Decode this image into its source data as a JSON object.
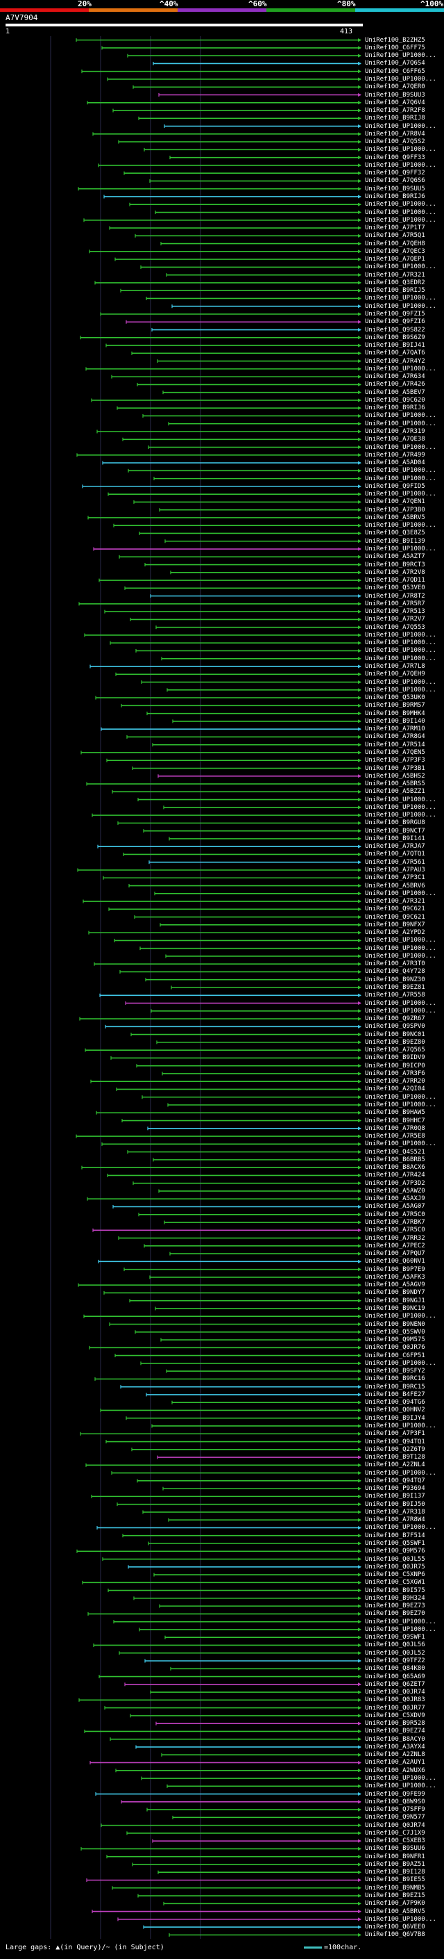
{
  "scale": {
    "labels": [
      "20%",
      "^40%",
      "^60%",
      "^80%",
      "^100%"
    ],
    "colors": [
      "#e01010",
      "#e07010",
      "#9030c0",
      "#20a020",
      "#20c0d0"
    ]
  },
  "query": {
    "id": "A7V7904",
    "start": "1",
    "end": "413"
  },
  "footer": {
    "text": "Large gaps: ▲(in Query)/~ (in Subject)",
    "legend": "=100char."
  },
  "colors": {
    "green": "#30c030",
    "cyan": "#40c8e8",
    "magenta": "#c040c0",
    "white": "#ffffff",
    "grid": "#2a2a4a"
  },
  "hits": [
    "UniRef100_B2ZHZ5",
    "UniRef100_C6FF75",
    "UniRef100_UP1000...",
    "UniRef100_A7Q6S4",
    "UniRef100_C6FF65",
    "UniRef100_UP1000...",
    "UniRef100_A7QER0",
    "UniRef100_B9SUU3",
    "UniRef100_A7Q6V4",
    "UniRef100_A7R2F8",
    "UniRef100_B9RIJ8",
    "UniRef100_UP1000...",
    "UniRef100_A7R8V4",
    "UniRef100_A7Q5S2",
    "UniRef100_UP1000...",
    "UniRef100_Q9FF33",
    "UniRef100_UP1000...",
    "UniRef100_Q9FF32",
    "UniRef100_A7Q6S6",
    "UniRef100_B9SUU5",
    "UniRef100_B9RIJ6",
    "UniRef100_UP1000...",
    "UniRef100_UP1000...",
    "UniRef100_UP1000...",
    "UniRef100_A7P1T7",
    "UniRef100_A7R5Q1",
    "UniRef100_A7QEH8",
    "UniRef100_A7QEC3",
    "UniRef100_A7QEP1",
    "UniRef100_UP1000...",
    "UniRef100_A7R321",
    "UniRef100_Q3EDR2",
    "UniRef100_B9RIJ5",
    "UniRef100_UP1000...",
    "UniRef100_UP1000...",
    "UniRef100_Q9FZI5",
    "UniRef100_Q9FZI6",
    "UniRef100_Q9S822",
    "UniRef100_B9S6Z9",
    "UniRef100_B9IJ41",
    "UniRef100_A7QAT6",
    "UniRef100_A7R4Y2",
    "UniRef100_UP1000...",
    "UniRef100_A7R634",
    "UniRef100_A7R426",
    "UniRef100_A5BEV7",
    "UniRef100_Q9C620",
    "UniRef100_B9RIJ6",
    "UniRef100_UP1000...",
    "UniRef100_UP1000...",
    "UniRef100_A7R319",
    "UniRef100_A7QE38",
    "UniRef100_UP1000...",
    "UniRef100_A7R499",
    "UniRef100_A5AD04",
    "UniRef100_UP1000...",
    "UniRef100_UP1000...",
    "UniRef100_Q9FID5",
    "UniRef100_UP1000...",
    "UniRef100_A7QEN1",
    "UniRef100_A7P3B0",
    "UniRef100_A5BRV5",
    "UniRef100_UP1000...",
    "UniRef100_Q3E8Z5",
    "UniRef100_B9I139",
    "UniRef100_UP1000...",
    "UniRef100_A5AZT7",
    "UniRef100_B9RCT3",
    "UniRef100_A7R2V8",
    "UniRef100_A7QD11",
    "UniRef100_Q53VE0",
    "UniRef100_A7R8T2",
    "UniRef100_A7R5R7",
    "UniRef100_A7R513",
    "UniRef100_A7R2V7",
    "UniRef100_A7Q553",
    "UniRef100_UP1000...",
    "UniRef100_UP1000...",
    "UniRef100_UP1000...",
    "UniRef100_UP1000...",
    "UniRef100_A7R7L8",
    "UniRef100_A7QEH9",
    "UniRef100_UP1000...",
    "UniRef100_UP1000...",
    "UniRef100_Q53UK0",
    "UniRef100_B9RMS7",
    "UniRef100_B9MHK4",
    "UniRef100_B9I140",
    "UniRef100_A7RM10",
    "UniRef100_A7R8G4",
    "UniRef100_A7R514",
    "UniRef100_A7QEN5",
    "UniRef100_A7P3F3",
    "UniRef100_A7P3B1",
    "UniRef100_A5BHS2",
    "UniRef100_A5BRS5",
    "UniRef100_A5BZZ1",
    "UniRef100_UP1000...",
    "UniRef100_UP1000...",
    "UniRef100_UP1000...",
    "UniRef100_B9RGU8",
    "UniRef100_B9NCT7",
    "UniRef100_B9I141",
    "UniRef100_A7RJA7",
    "UniRef100_A7QTQ1",
    "UniRef100_A7R561",
    "UniRef100_A7PAU3",
    "UniRef100_A7P3C1",
    "UniRef100_A5BRV6",
    "UniRef100_UP1000...",
    "UniRef100_A7R321",
    "UniRef100_Q9C621",
    "UniRef100_Q9C621",
    "UniRef100_B9NFX7",
    "UniRef100_A2YPD2",
    "UniRef100_UP1000...",
    "UniRef100_UP1000...",
    "UniRef100_UP1000...",
    "UniRef100_A7R3T0",
    "UniRef100_Q4Y728",
    "UniRef100_B9NZ30",
    "UniRef100_B9EZ81",
    "UniRef100_A7R558",
    "UniRef100_UP1000...",
    "UniRef100_UP1000...",
    "UniRef100_Q9ZR67",
    "UniRef100_Q9SPV0",
    "UniRef100_B9NC01",
    "UniRef100_B9EZ80",
    "UniRef100_A7Q565",
    "UniRef100_B9IDV9",
    "UniRef100_B9ICP0",
    "UniRef100_A7R3F6",
    "UniRef100_A7RR20",
    "UniRef100_A2QI04",
    "UniRef100_UP1000...",
    "UniRef100_UP1000...",
    "UniRef100_B9HAW5",
    "UniRef100_B9HHC7",
    "UniRef100_A7R0Q8",
    "UniRef100_A7R5E8",
    "UniRef100_UP1000...",
    "UniRef100_Q4S521",
    "UniRef100_B6BRB5",
    "UniRef100_B8ACX6",
    "UniRef100_A7R424",
    "UniRef100_A7P3D2",
    "UniRef100_A5AWZ0",
    "UniRef100_A5AXJ9",
    "UniRef100_A5AG07",
    "UniRef100_A7R5C0",
    "UniRef100_A7RBK7",
    "UniRef100_A7R5C0",
    "UniRef100_A7RR32",
    "UniRef100_A7PEC2",
    "UniRef100_A7PQU7",
    "UniRef100_Q60NV1",
    "UniRef100_B9P7E9",
    "UniRef100_A5AFK3",
    "UniRef100_A5AGV9",
    "UniRef100_B9NDY7",
    "UniRef100_B9NGJ1",
    "UniRef100_B9NC19",
    "UniRef100_UP1000...",
    "UniRef100_B9NEN0",
    "UniRef100_Q5SWV0",
    "UniRef100_Q9M575",
    "UniRef100_Q0JR76",
    "UniRef100_C6FP51",
    "UniRef100_UP1000...",
    "UniRef100_B9SFY2",
    "UniRef100_B9RC16",
    "UniRef100_B9RC15",
    "UniRef100_B4FE27",
    "UniRef100_Q94TG6",
    "UniRef100_Q0HNV2",
    "UniRef100_B9IJY4",
    "UniRef100_UP1000...",
    "UniRef100_A7P3F1",
    "UniRef100_Q94TQ1",
    "UniRef100_Q2Z6T9",
    "UniRef100_B9T128",
    "UniRef100_A2ZNL4",
    "UniRef100_UP1000...",
    "UniRef100_Q94TQ7",
    "UniRef100_P93694",
    "UniRef100_B9I137",
    "UniRef100_B9IJ50",
    "UniRef100_A7R318",
    "UniRef100_A7R8W4",
    "UniRef100_UP1000...",
    "UniRef100_B7F514",
    "UniRef100_Q5SWF1",
    "UniRef100_Q9M576",
    "UniRef100_Q0JL55",
    "UniRef100_Q0JR75",
    "UniRef100_C5XNP6",
    "UniRef100_C5XGW1",
    "UniRef100_B9I575",
    "UniRef100_B9H324",
    "UniRef100_B9EZ73",
    "UniRef100_B9EZ70",
    "UniRef100_UP1000...",
    "UniRef100_UP1000...",
    "UniRef100_Q9SWF1",
    "UniRef100_Q0JL56",
    "UniRef100_Q0JL52",
    "UniRef100_Q9TFZ2",
    "UniRef100_Q84K80",
    "UniRef100_Q65A69",
    "UniRef100_Q6ZET7",
    "UniRef100_Q0JR74",
    "UniRef100_Q0JR83",
    "UniRef100_Q0JR77",
    "UniRef100_C5XDV9",
    "UniRef100_B9R528",
    "UniRef100_B9EZ74",
    "UniRef100_B8ACY0",
    "UniRef100_A3AYX4",
    "UniRef100_A2ZNL8",
    "UniRef100_A2AUY1",
    "UniRef100_A2WUX6",
    "UniRef100_UP1000...",
    "UniRef100_UP1000...",
    "UniRef100_Q9FE99",
    "UniRef100_Q8W9S0",
    "UniRef100_Q7SFF9",
    "UniRef100_Q9N577",
    "UniRef100_Q0JR74",
    "UniRef100_C7J1X9",
    "UniRef100_C5XEB3",
    "UniRef100_B9SUU6",
    "UniRef100_B9NFR1",
    "UniRef100_B9AZ51",
    "UniRef100_B9I128",
    "UniRef100_B9IE55",
    "UniRef100_B9NMB5",
    "UniRef100_B9EZ15",
    "UniRef100_A7P9K0",
    "UniRef100_A5BRV5",
    "UniRef100_UP1000...",
    "UniRef100_Q6VEE0",
    "UniRef100_Q6V7B8"
  ]
}
